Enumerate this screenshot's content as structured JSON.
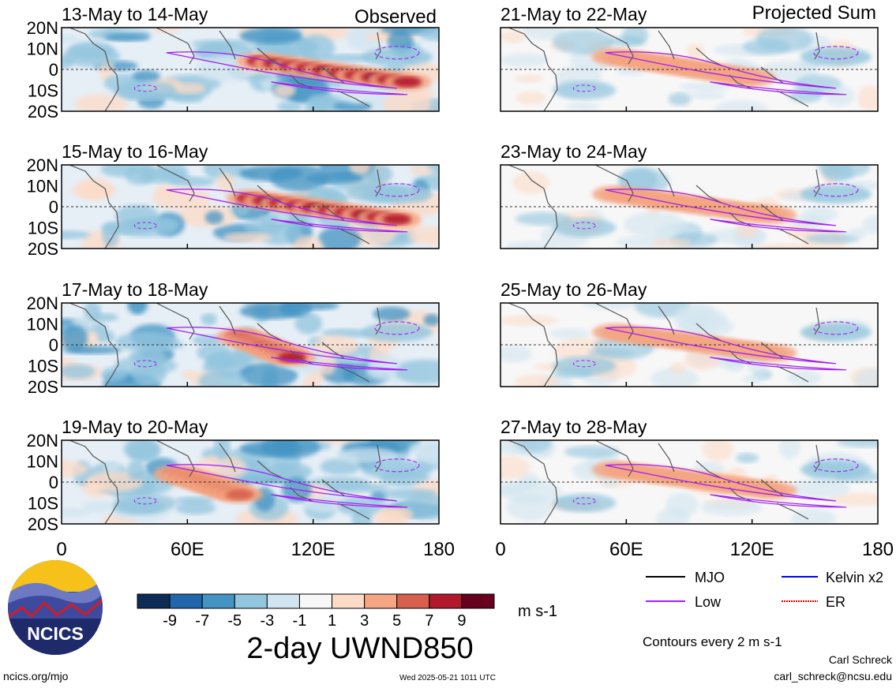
{
  "panels": {
    "left_column_label": "Observed",
    "right_column_label": "Projected Sum",
    "left_titles": [
      "13-May to 14-May",
      "15-May to 16-May",
      "17-May to 18-May",
      "19-May to 20-May"
    ],
    "right_titles": [
      "21-May to 22-May",
      "23-May to 24-May",
      "25-May to 26-May",
      "27-May to 28-May"
    ]
  },
  "colorbar": {
    "tick_labels": [
      "-9",
      "-7",
      "-5",
      "-3",
      "-1",
      "1",
      "3",
      "5",
      "7",
      "9"
    ],
    "colors": [
      "#0c2b57",
      "#2166ac",
      "#4393c3",
      "#92c5de",
      "#d1e5f0",
      "#f7f7f7",
      "#fddbc7",
      "#f4a582",
      "#d6604d",
      "#b2182b",
      "#67001f"
    ],
    "units": "m s-1"
  },
  "legend": {
    "items": [
      {
        "label": "MJO",
        "color": "#000000"
      },
      {
        "label": "Kelvin x2",
        "color": "#0000ff"
      },
      {
        "label": "Low",
        "color": "#a020f0"
      },
      {
        "label": "ER",
        "color": "#e00000"
      }
    ],
    "contour_note": "Contours every 2 m s-1"
  },
  "title": "2-day UWND850",
  "footer": {
    "left_url": "ncics.org/mjo",
    "timestamp": "Wed 2025-05-21 1011 UTC",
    "author": "Carl Schreck",
    "email": "carl_schreck@ncsu.edu",
    "logo_text": "NCICS"
  },
  "chart_data": {
    "type": "heatmap",
    "variable": "850-hPa zonal wind anomaly",
    "x_ticks": [
      "0",
      "60E",
      "120E",
      "180"
    ],
    "y_ticks": [
      "20N",
      "10N",
      "0",
      "10S",
      "20S"
    ],
    "xlim": [
      0,
      180
    ],
    "ylim": [
      -20,
      20
    ],
    "levels": [
      -9,
      -7,
      -5,
      -3,
      -1,
      1,
      3,
      5,
      7,
      9
    ],
    "panels": [
      {
        "title": "13-May to 14-May",
        "column": "Observed",
        "peak_westerly_lon": [
          95,
          165
        ],
        "peak_westerly": 9
      },
      {
        "title": "15-May to 16-May",
        "column": "Observed",
        "peak_westerly_lon": [
          90,
          160
        ],
        "peak_westerly": 9
      },
      {
        "title": "17-May to 18-May",
        "column": "Observed",
        "peak_westerly_lon": [
          85,
          110
        ],
        "peak_westerly": 9
      },
      {
        "title": "19-May to 20-May",
        "column": "Observed",
        "peak_westerly_lon": [
          55,
          85
        ],
        "peak_westerly": 7
      },
      {
        "title": "21-May to 22-May",
        "column": "Projected Sum",
        "peak_westerly_lon": [
          55,
          120
        ],
        "peak_westerly": 3
      },
      {
        "title": "23-May to 24-May",
        "column": "Projected Sum",
        "peak_westerly_lon": [
          55,
          130
        ],
        "peak_westerly": 3
      },
      {
        "title": "25-May to 26-May",
        "column": "Projected Sum",
        "peak_westerly_lon": [
          55,
          130
        ],
        "peak_westerly": 3
      },
      {
        "title": "27-May to 28-May",
        "column": "Projected Sum",
        "peak_westerly_lon": [
          55,
          130
        ],
        "peak_westerly": 3
      }
    ]
  }
}
